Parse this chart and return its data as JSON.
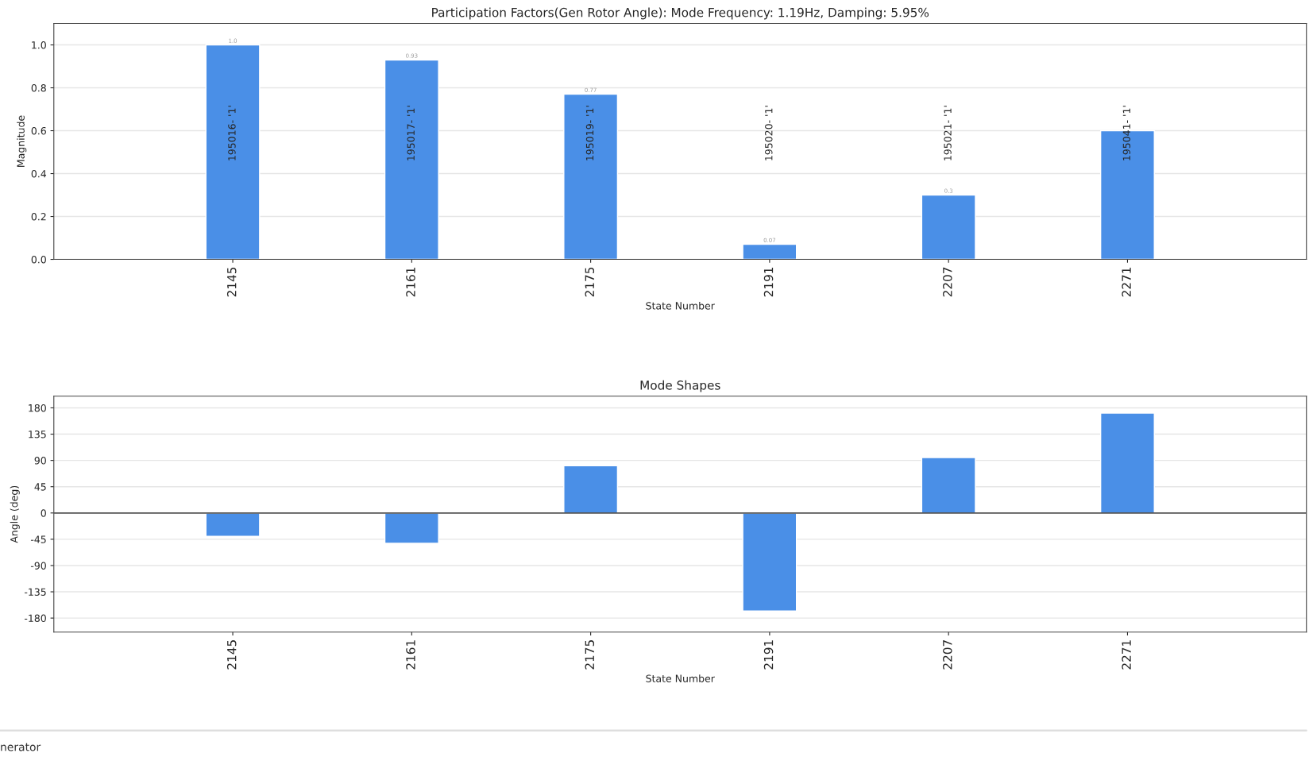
{
  "chart_data": [
    {
      "type": "bar",
      "title": "Participation Factors(Gen Rotor Angle): Mode Frequency: 1.19Hz, Damping: 5.95%",
      "xlabel": "State Number",
      "ylabel": "Magnitude",
      "categories": [
        "2145",
        "2161",
        "2175",
        "2191",
        "2207",
        "2271"
      ],
      "series": [
        {
          "color": "#4a8fe7",
          "values": [
            1.0,
            0.93,
            0.77,
            0.07,
            0.3,
            0.6
          ],
          "value_labels": [
            "1.0",
            "0.93",
            "0.77",
            "0.07",
            "0.3",
            null
          ]
        }
      ],
      "ylim": [
        0,
        1.1
      ],
      "yticks": [
        {
          "value": 0,
          "label": "0.0"
        },
        0.2,
        0.4,
        0.6,
        0.8,
        {
          "value": 1,
          "label": "1.0"
        }
      ],
      "grid": "y",
      "annotations": [
        "195016- '1'",
        "195017- '1'",
        "195019- '1'",
        "195020- '1'",
        "195021- '1'",
        "195041- '1'"
      ]
    },
    {
      "type": "bar",
      "title": "Mode Shapes",
      "xlabel": "State Number",
      "ylabel": "Angle (deg)",
      "categories": [
        "2145",
        "2161",
        "2175",
        "2191",
        "2207",
        "2271"
      ],
      "series": [
        {
          "color": "#4a8fe7",
          "values": [
            -40,
            -52,
            81,
            -168,
            95,
            171
          ]
        }
      ],
      "ylim": [
        -204,
        200
      ],
      "yticks": [
        -180,
        -135,
        -90,
        -45,
        0,
        45,
        90,
        135,
        180
      ],
      "grid": "y",
      "ref_lines": [
        {
          "axis": "y",
          "value": 0,
          "color": "#555555"
        }
      ],
      "annotations": [
        "nerator"
      ]
    }
  ]
}
